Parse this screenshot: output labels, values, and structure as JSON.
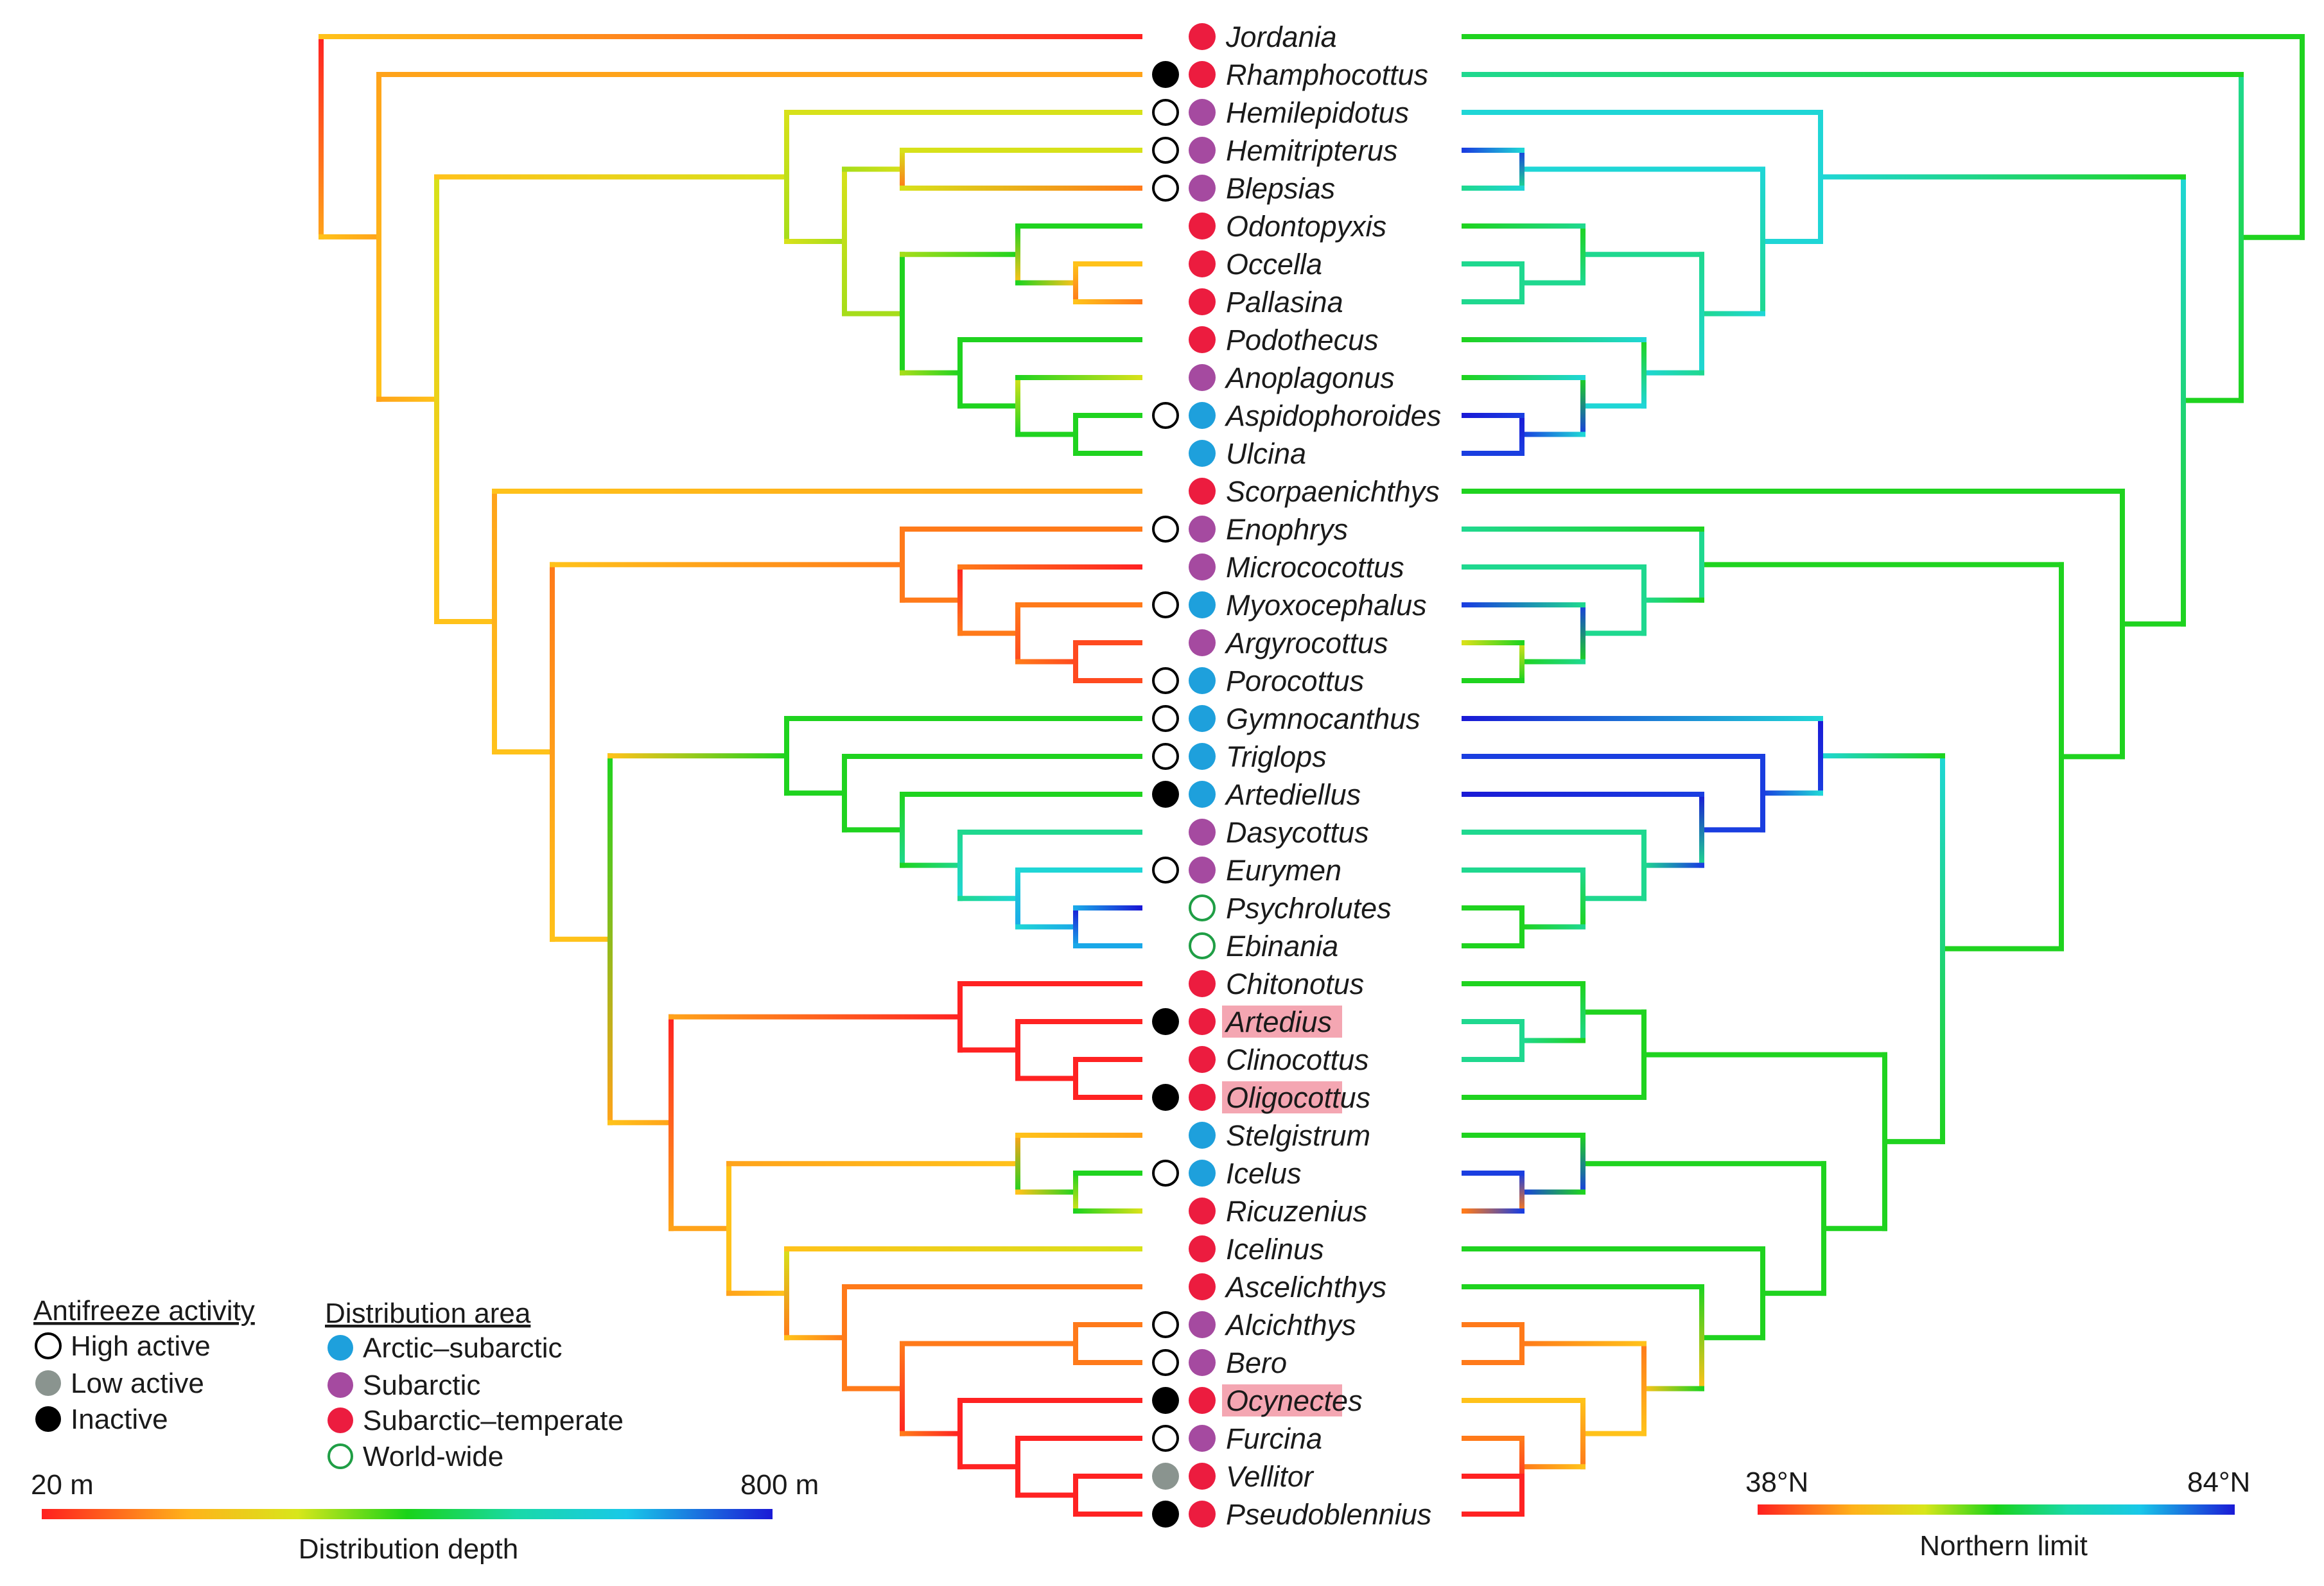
{
  "figure": {
    "colors": {
      "high_active": "#ffffff",
      "low_active": "#8a948f",
      "inactive": "#000000",
      "arctic_subarctic": "#1ea0dc",
      "subarctic": "#a54aa0",
      "subarctic_temperate": "#ec1c3f",
      "world_wide": "#1f9e45",
      "highlight": "#f4a6b2"
    },
    "taxa": [
      {
        "name": "Jordania",
        "activity": "",
        "area": "subarctic_temperate",
        "highlight": false
      },
      {
        "name": "Rhamphocottus",
        "activity": "inactive",
        "area": "subarctic_temperate",
        "highlight": false
      },
      {
        "name": "Hemilepidotus",
        "activity": "high",
        "area": "subarctic",
        "highlight": false
      },
      {
        "name": "Hemitripterus",
        "activity": "high",
        "area": "subarctic",
        "highlight": false
      },
      {
        "name": "Blepsias",
        "activity": "high",
        "area": "subarctic",
        "highlight": false
      },
      {
        "name": "Odontopyxis",
        "activity": "",
        "area": "subarctic_temperate",
        "highlight": false
      },
      {
        "name": "Occella",
        "activity": "",
        "area": "subarctic_temperate",
        "highlight": false
      },
      {
        "name": "Pallasina",
        "activity": "",
        "area": "subarctic_temperate",
        "highlight": false
      },
      {
        "name": "Podothecus",
        "activity": "",
        "area": "subarctic_temperate",
        "highlight": false
      },
      {
        "name": "Anoplagonus",
        "activity": "",
        "area": "subarctic",
        "highlight": false
      },
      {
        "name": "Aspidophoroides",
        "activity": "high",
        "area": "arctic_subarctic",
        "highlight": false
      },
      {
        "name": "Ulcina",
        "activity": "",
        "area": "arctic_subarctic",
        "highlight": false
      },
      {
        "name": "Scorpaenichthys",
        "activity": "",
        "area": "subarctic_temperate",
        "highlight": false
      },
      {
        "name": "Enophrys",
        "activity": "high",
        "area": "subarctic",
        "highlight": false
      },
      {
        "name": "Micrococottus",
        "activity": "",
        "area": "subarctic",
        "highlight": false
      },
      {
        "name": "Myoxocephalus",
        "activity": "high",
        "area": "arctic_subarctic",
        "highlight": false
      },
      {
        "name": "Argyrocottus",
        "activity": "",
        "area": "subarctic",
        "highlight": false
      },
      {
        "name": "Porocottus",
        "activity": "high",
        "area": "arctic_subarctic",
        "highlight": false
      },
      {
        "name": "Gymnocanthus",
        "activity": "high",
        "area": "arctic_subarctic",
        "highlight": false
      },
      {
        "name": "Triglops",
        "activity": "high",
        "area": "arctic_subarctic",
        "highlight": false
      },
      {
        "name": "Artediellus",
        "activity": "inactive",
        "area": "arctic_subarctic",
        "highlight": false
      },
      {
        "name": "Dasycottus",
        "activity": "",
        "area": "subarctic",
        "highlight": false
      },
      {
        "name": "Eurymen",
        "activity": "high",
        "area": "subarctic",
        "highlight": false
      },
      {
        "name": "Psychrolutes",
        "activity": "",
        "area": "world_wide",
        "highlight": false
      },
      {
        "name": "Ebinania",
        "activity": "",
        "area": "world_wide",
        "highlight": false
      },
      {
        "name": "Chitonotus",
        "activity": "",
        "area": "subarctic_temperate",
        "highlight": false
      },
      {
        "name": "Artedius",
        "activity": "inactive",
        "area": "subarctic_temperate",
        "highlight": true
      },
      {
        "name": "Clinocottus",
        "activity": "",
        "area": "subarctic_temperate",
        "highlight": false
      },
      {
        "name": "Oligocottus",
        "activity": "inactive",
        "area": "subarctic_temperate",
        "highlight": true
      },
      {
        "name": "Stelgistrum",
        "activity": "",
        "area": "arctic_subarctic",
        "highlight": false
      },
      {
        "name": "Icelus",
        "activity": "high",
        "area": "arctic_subarctic",
        "highlight": false
      },
      {
        "name": "Ricuzenius",
        "activity": "",
        "area": "subarctic_temperate",
        "highlight": false
      },
      {
        "name": "Icelinus",
        "activity": "",
        "area": "subarctic_temperate",
        "highlight": false
      },
      {
        "name": "Ascelichthys",
        "activity": "",
        "area": "subarctic_temperate",
        "highlight": false
      },
      {
        "name": "Alcichthys",
        "activity": "high",
        "area": "subarctic",
        "highlight": false
      },
      {
        "name": "Bero",
        "activity": "high",
        "area": "subarctic",
        "highlight": false
      },
      {
        "name": "Ocynectes",
        "activity": "inactive",
        "area": "subarctic_temperate",
        "highlight": true
      },
      {
        "name": "Furcina",
        "activity": "high",
        "area": "subarctic",
        "highlight": false
      },
      {
        "name": "Vellitor",
        "activity": "low",
        "area": "subarctic_temperate",
        "highlight": false
      },
      {
        "name": "Pseudoblennius",
        "activity": "inactive",
        "area": "subarctic_temperate",
        "highlight": false
      }
    ],
    "legend_activity": {
      "title": "Antifreeze activity",
      "items": [
        {
          "label": "High active",
          "key": "high"
        },
        {
          "label": "Low active",
          "key": "low"
        },
        {
          "label": "Inactive",
          "key": "inactive"
        }
      ]
    },
    "legend_area": {
      "title": "Distribution area",
      "items": [
        {
          "label": "Arctic–subarctic",
          "key": "arctic_subarctic"
        },
        {
          "label": "Subarctic",
          "key": "subarctic"
        },
        {
          "label": "Subarctic–temperate",
          "key": "subarctic_temperate"
        },
        {
          "label": "World-wide",
          "key": "world_wide"
        }
      ]
    },
    "depth_scale": {
      "min_label": "20 m",
      "max_label": "800 m",
      "caption": "Distribution depth"
    },
    "latitude_scale": {
      "min_label": "38°N",
      "max_label": "84°N",
      "caption": "Northern limit"
    }
  }
}
